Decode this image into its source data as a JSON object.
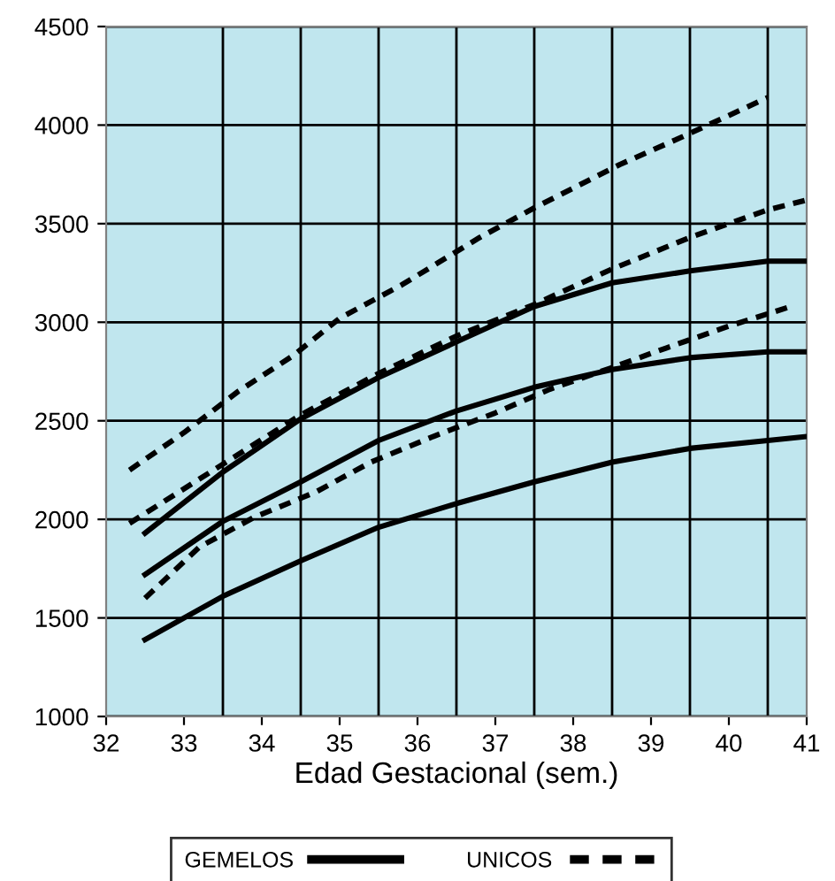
{
  "chart_data": {
    "type": "line",
    "xlabel": "Edad Gestacional (sem.)",
    "xlim": [
      32,
      41
    ],
    "xticks": [
      32,
      33,
      34,
      35,
      36,
      37,
      38,
      39,
      40,
      41
    ],
    "ylim": [
      1000,
      4500
    ],
    "yticks": [
      1000,
      1500,
      2000,
      2500,
      3000,
      3500,
      4000,
      4500
    ],
    "grid": "y",
    "legend": "bottom",
    "marker": "none",
    "ref_lines": [
      {
        "axis": "x",
        "value": 33.5,
        "color": "#000000"
      },
      {
        "axis": "x",
        "value": 34.5,
        "color": "#000000"
      },
      {
        "axis": "x",
        "value": 35.5,
        "color": "#000000"
      },
      {
        "axis": "x",
        "value": 36.5,
        "color": "#000000"
      },
      {
        "axis": "x",
        "value": 37.5,
        "color": "#000000"
      },
      {
        "axis": "x",
        "value": 38.5,
        "color": "#000000"
      },
      {
        "axis": "x",
        "value": 39.5,
        "color": "#000000"
      },
      {
        "axis": "x",
        "value": 40.5,
        "color": "#000000"
      }
    ],
    "series": [
      {
        "name": "GEMELOS",
        "color": "#000000",
        "line_style": "solid",
        "x": [
          32.5,
          33.5,
          34.5,
          35.5,
          36.5,
          37.5,
          38.5,
          39.5,
          40.5,
          41
        ],
        "values": [
          1930,
          2240,
          2510,
          2720,
          2900,
          3080,
          3200,
          3260,
          3310,
          3310
        ]
      },
      {
        "color": "#000000",
        "line_style": "solid",
        "x": [
          32.5,
          33.5,
          34.5,
          35.5,
          36.5,
          37.5,
          38.5,
          39.5,
          40.5,
          41
        ],
        "values": [
          1720,
          1990,
          2190,
          2400,
          2550,
          2670,
          2760,
          2820,
          2850,
          2850
        ]
      },
      {
        "color": "#000000",
        "line_style": "solid",
        "x": [
          32.5,
          33.5,
          34.5,
          35.5,
          36.5,
          37.5,
          38.5,
          39.5,
          40.5,
          41
        ],
        "values": [
          1390,
          1610,
          1790,
          1960,
          2080,
          2190,
          2290,
          2360,
          2400,
          2420
        ]
      },
      {
        "name": "UNICOS",
        "color": "#000000",
        "line_style": "dashed",
        "x": [
          32.3,
          33.0,
          33.7,
          34.4,
          35.0,
          35.8,
          36.8,
          37.5,
          38.6,
          39.4,
          40.5
        ],
        "values": [
          2250,
          2440,
          2650,
          2830,
          3020,
          3190,
          3430,
          3580,
          3800,
          3940,
          4140
        ]
      },
      {
        "color": "#000000",
        "line_style": "dashed",
        "x": [
          32.3,
          33.5,
          34.5,
          35.5,
          36.5,
          37.5,
          38.5,
          39.5,
          40.5,
          41
        ],
        "values": [
          1980,
          2280,
          2530,
          2740,
          2930,
          3090,
          3270,
          3430,
          3570,
          3620
        ]
      },
      {
        "color": "#000000",
        "line_style": "dashed",
        "x": [
          32.5,
          33.2,
          33.9,
          34.7,
          35.4,
          36.2,
          37.0,
          37.7,
          38.5,
          39.2,
          40.0,
          40.8
        ],
        "values": [
          1600,
          1860,
          2010,
          2140,
          2290,
          2420,
          2540,
          2660,
          2770,
          2870,
          2980,
          3080
        ]
      }
    ]
  }
}
